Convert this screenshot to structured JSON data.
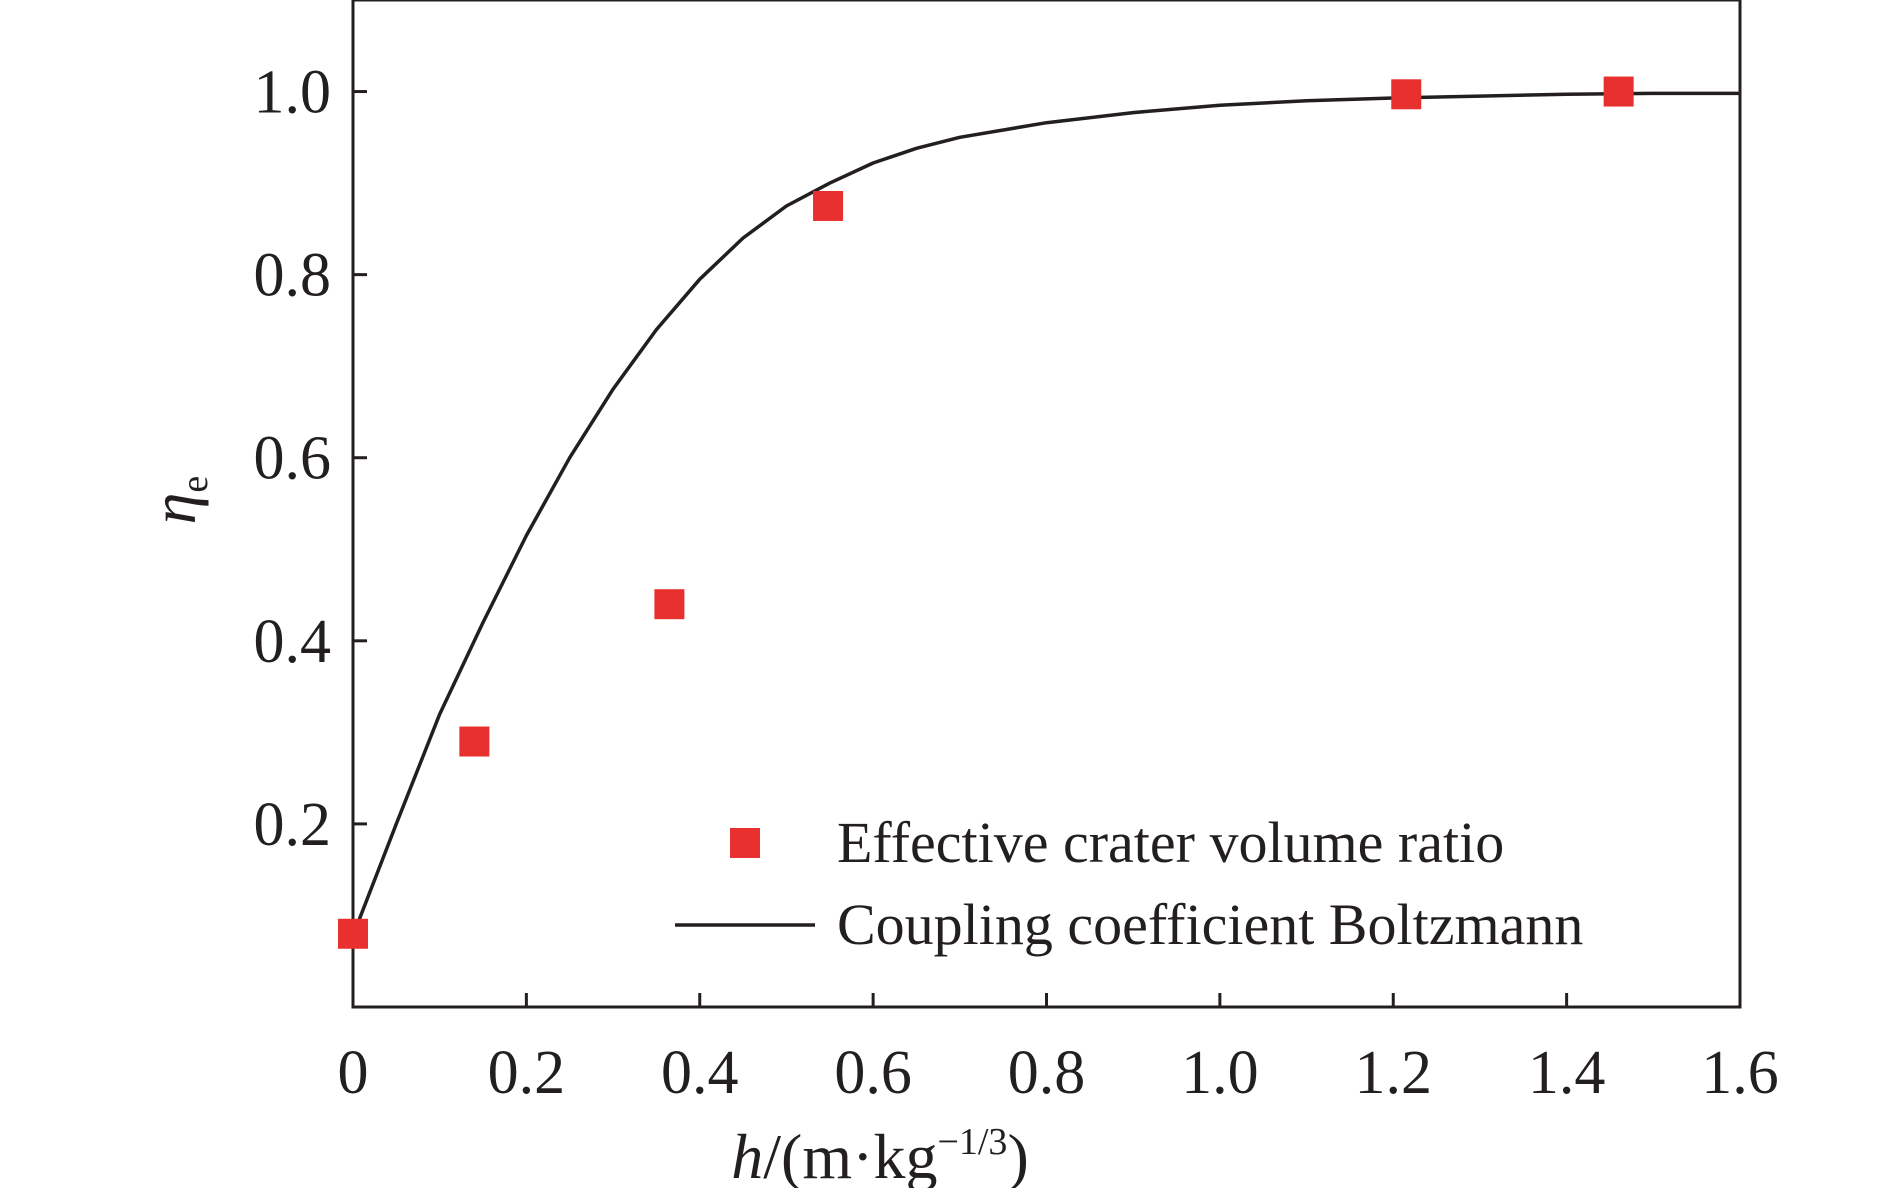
{
  "chart_data": {
    "type": "scatter",
    "title": "",
    "xlabel": {
      "var": "h",
      "unit_prefix": "/(m·kg",
      "unit_exp": "−1/3",
      "unit_suffix": ")"
    },
    "ylabel": {
      "var": "η",
      "sub": "e"
    },
    "xlim": [
      0,
      1.6
    ],
    "ylim": [
      0,
      1.1
    ],
    "x_ticks": [
      0,
      0.2,
      0.4,
      0.6,
      0.8,
      1.0,
      1.2,
      1.4,
      1.6
    ],
    "x_tick_labels": [
      "0",
      "0.2",
      "0.4",
      "0.6",
      "0.8",
      "1.0",
      "1.2",
      "1.4",
      "1.6"
    ],
    "y_ticks": [
      0.2,
      0.4,
      0.6,
      0.8,
      1.0
    ],
    "y_tick_labels": [
      "0.2",
      "0.4",
      "0.6",
      "0.8",
      "1.0"
    ],
    "grid": false,
    "legend_position": "bottom-right",
    "series": [
      {
        "name": "Effective crater volume ratio",
        "kind": "scatter",
        "marker": "square",
        "color": "#e8312f",
        "x": [
          0.0,
          0.14,
          0.365,
          0.548,
          1.215,
          1.46
        ],
        "y": [
          0.08,
          0.29,
          0.44,
          0.875,
          0.997,
          1.0
        ]
      },
      {
        "name": "Coupling coefficient Boltzmann",
        "kind": "line",
        "color": "#231f20",
        "x": [
          0.0,
          0.05,
          0.1,
          0.15,
          0.2,
          0.25,
          0.3,
          0.35,
          0.4,
          0.45,
          0.5,
          0.55,
          0.6,
          0.65,
          0.7,
          0.8,
          0.9,
          1.0,
          1.1,
          1.2,
          1.3,
          1.4,
          1.5,
          1.6
        ],
        "y": [
          0.078,
          0.2,
          0.32,
          0.42,
          0.515,
          0.6,
          0.675,
          0.74,
          0.795,
          0.84,
          0.875,
          0.9,
          0.922,
          0.938,
          0.95,
          0.966,
          0.977,
          0.985,
          0.99,
          0.993,
          0.995,
          0.997,
          0.998,
          0.998
        ]
      }
    ]
  }
}
